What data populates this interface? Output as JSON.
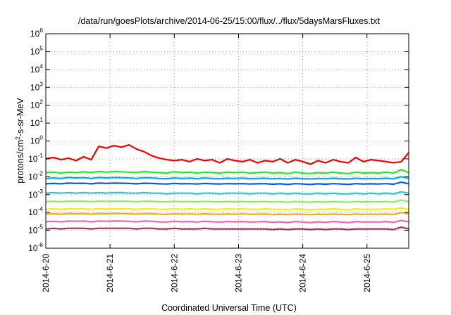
{
  "chart_data": {
    "type": "line",
    "title": "/data/run/goesPlots/archive/2014-06-25/15:00/flux/../flux/5daysMarsFluxes.txt",
    "xlabel": "Coordinated Universal Time (UTC)",
    "ylabel_prefix": "protons/cm",
    "ylabel_sup": "2",
    "ylabel_suffix": "-s-sr-MeV",
    "y_scale": "log",
    "ylim_exponents": [
      -6,
      6
    ],
    "y_ticks": [
      {
        "base": "10",
        "exp": "6"
      },
      {
        "base": "10",
        "exp": "5"
      },
      {
        "base": "10",
        "exp": "4"
      },
      {
        "base": "10",
        "exp": "3"
      },
      {
        "base": "10",
        "exp": "2"
      },
      {
        "base": "10",
        "exp": "1"
      },
      {
        "base": "10",
        "exp": "0"
      },
      {
        "base": "10",
        "exp": "-1"
      },
      {
        "base": "10",
        "exp": "-2"
      },
      {
        "base": "10",
        "exp": "-3"
      },
      {
        "base": "10",
        "exp": "-4"
      },
      {
        "base": "10",
        "exp": "-5"
      },
      {
        "base": "10",
        "exp": "-6"
      }
    ],
    "x_ticks": [
      "2014-6-20",
      "2014-6-21",
      "2014-6-22",
      "2014-6-23",
      "2014-6-24",
      "2014-6-25"
    ],
    "xlim_days": [
      0,
      5.65
    ],
    "grid": true,
    "series": [
      {
        "color": "#ee0000",
        "values": [
          0.1,
          0.12,
          0.09,
          0.11,
          0.08,
          0.13,
          0.09,
          0.5,
          0.4,
          0.55,
          0.45,
          0.6,
          0.35,
          0.25,
          0.15,
          0.11,
          0.09,
          0.08,
          0.09,
          0.07,
          0.1,
          0.08,
          0.09,
          0.06,
          0.1,
          0.08,
          0.07,
          0.09,
          0.06,
          0.08,
          0.07,
          0.1,
          0.06,
          0.09,
          0.07,
          0.05,
          0.08,
          0.06,
          0.09,
          0.07,
          0.06,
          0.12,
          0.07,
          0.09,
          0.08,
          0.07,
          0.06,
          0.07,
          0.22
        ]
      },
      {
        "color": "#22ee22",
        "values": [
          0.017,
          0.018,
          0.016,
          0.018,
          0.017,
          0.019,
          0.017,
          0.02,
          0.018,
          0.02,
          0.019,
          0.018,
          0.017,
          0.02,
          0.018,
          0.017,
          0.016,
          0.019,
          0.017,
          0.018,
          0.016,
          0.018,
          0.017,
          0.016,
          0.018,
          0.017,
          0.018,
          0.016,
          0.017,
          0.018,
          0.016,
          0.017,
          0.015,
          0.018,
          0.016,
          0.015,
          0.017,
          0.016,
          0.018,
          0.016,
          0.015,
          0.018,
          0.016,
          0.017,
          0.016,
          0.018,
          0.016,
          0.025,
          0.017
        ]
      },
      {
        "color": "#00aaee",
        "values": [
          0.008,
          0.0085,
          0.008,
          0.009,
          0.0085,
          0.0088,
          0.008,
          0.009,
          0.0085,
          0.009,
          0.0088,
          0.0085,
          0.008,
          0.0088,
          0.0085,
          0.008,
          0.0078,
          0.0085,
          0.008,
          0.0083,
          0.0078,
          0.0085,
          0.008,
          0.0078,
          0.0082,
          0.008,
          0.0083,
          0.0078,
          0.008,
          0.0082,
          0.0077,
          0.008,
          0.0075,
          0.0082,
          0.0078,
          0.0075,
          0.008,
          0.0077,
          0.0082,
          0.0078,
          0.0075,
          0.0082,
          0.0078,
          0.008,
          0.0078,
          0.0082,
          0.0077,
          0.01,
          0.008
        ]
      },
      {
        "color": "#1155ee",
        "values": [
          0.004,
          0.0042,
          0.004,
          0.0044,
          0.0042,
          0.0043,
          0.004,
          0.0044,
          0.0042,
          0.0044,
          0.0043,
          0.0042,
          0.004,
          0.0043,
          0.0042,
          0.004,
          0.0039,
          0.0042,
          0.004,
          0.0041,
          0.0039,
          0.0042,
          0.004,
          0.0039,
          0.0041,
          0.004,
          0.0041,
          0.0039,
          0.004,
          0.0041,
          0.0038,
          0.004,
          0.0037,
          0.0041,
          0.0039,
          0.0037,
          0.004,
          0.0038,
          0.0041,
          0.0039,
          0.0037,
          0.0041,
          0.0039,
          0.004,
          0.0039,
          0.0041,
          0.0038,
          0.005,
          0.004
        ]
      },
      {
        "color": "#22cccc",
        "values": [
          0.0012,
          0.0013,
          0.0012,
          0.0013,
          0.0012,
          0.0013,
          0.0012,
          0.0013,
          0.0012,
          0.0013,
          0.0013,
          0.0012,
          0.0012,
          0.0013,
          0.0012,
          0.0012,
          0.0011,
          0.0012,
          0.0012,
          0.0012,
          0.0011,
          0.0012,
          0.0012,
          0.0011,
          0.0012,
          0.0012,
          0.0012,
          0.0011,
          0.0012,
          0.0012,
          0.0011,
          0.0012,
          0.0011,
          0.0012,
          0.0011,
          0.0011,
          0.0012,
          0.0011,
          0.0012,
          0.0011,
          0.0011,
          0.0012,
          0.0011,
          0.0012,
          0.0011,
          0.0012,
          0.0011,
          0.0014,
          0.0012
        ]
      },
      {
        "color": "#88ee66",
        "values": [
          0.0004,
          0.00042,
          0.0004,
          0.00043,
          0.00042,
          0.00043,
          0.0004,
          0.00043,
          0.00042,
          0.00043,
          0.00043,
          0.00042,
          0.0004,
          0.00043,
          0.00042,
          0.0004,
          0.00039,
          0.00042,
          0.0004,
          0.00041,
          0.00039,
          0.00042,
          0.0004,
          0.00039,
          0.00041,
          0.0004,
          0.00041,
          0.00039,
          0.0004,
          0.00041,
          0.00038,
          0.0004,
          0.00037,
          0.00041,
          0.00039,
          0.00037,
          0.0004,
          0.00038,
          0.00041,
          0.00039,
          0.00037,
          0.00041,
          0.00039,
          0.0004,
          0.00039,
          0.00041,
          0.00038,
          0.0005,
          0.0004
        ]
      },
      {
        "color": "#eeee22",
        "values": [
          0.00015,
          0.00016,
          0.00015,
          0.00016,
          0.00016,
          0.00016,
          0.00015,
          0.00016,
          0.00016,
          0.00016,
          0.00016,
          0.00016,
          0.00015,
          0.00016,
          0.00016,
          0.00015,
          0.00015,
          0.00016,
          0.00015,
          0.00016,
          0.00015,
          0.00016,
          0.00015,
          0.00015,
          0.00016,
          0.00015,
          0.00016,
          0.00015,
          0.00015,
          0.00016,
          0.00015,
          0.00015,
          0.00014,
          0.00016,
          0.00015,
          0.00014,
          0.00015,
          0.00015,
          0.00016,
          0.00015,
          0.00014,
          0.00016,
          0.00015,
          0.00015,
          0.00015,
          0.00016,
          0.00015,
          0.00018,
          0.00015
        ]
      },
      {
        "color": "#eeaa22",
        "values": [
          8e-05,
          8.5e-05,
          8e-05,
          8.8e-05,
          8.5e-05,
          8.7e-05,
          8e-05,
          8.8e-05,
          8.5e-05,
          8.8e-05,
          8.7e-05,
          8.5e-05,
          8e-05,
          8.7e-05,
          8.5e-05,
          8e-05,
          7.8e-05,
          8.5e-05,
          8e-05,
          8.3e-05,
          7.8e-05,
          8.5e-05,
          8e-05,
          7.8e-05,
          8.2e-05,
          8e-05,
          8.3e-05,
          7.8e-05,
          8e-05,
          8.2e-05,
          7.7e-05,
          8e-05,
          7.5e-05,
          8.2e-05,
          7.8e-05,
          7.5e-05,
          8e-05,
          7.7e-05,
          8.2e-05,
          7.8e-05,
          7.5e-05,
          8.2e-05,
          7.8e-05,
          8e-05,
          7.8e-05,
          8.2e-05,
          7.7e-05,
          0.0001,
          8e-05
        ]
      },
      {
        "color": "#ee66aa",
        "values": [
          3e-05,
          3.2e-05,
          3e-05,
          3.3e-05,
          3.2e-05,
          3.3e-05,
          3e-05,
          3.3e-05,
          3.2e-05,
          3.3e-05,
          3.3e-05,
          3.2e-05,
          3e-05,
          3.3e-05,
          3.2e-05,
          3e-05,
          2.9e-05,
          3.2e-05,
          3e-05,
          3.1e-05,
          2.9e-05,
          3.2e-05,
          3e-05,
          2.9e-05,
          3.1e-05,
          3e-05,
          3.1e-05,
          2.9e-05,
          3e-05,
          3.1e-05,
          2.8e-05,
          3e-05,
          2.7e-05,
          3.1e-05,
          2.9e-05,
          2.7e-05,
          3e-05,
          2.8e-05,
          3.1e-05,
          2.9e-05,
          2.7e-05,
          3.1e-05,
          2.9e-05,
          3e-05,
          2.9e-05,
          3.1e-05,
          2.8e-05,
          3.6e-05,
          3e-05
        ]
      },
      {
        "color": "#993366",
        "values": [
          1.2e-05,
          1.3e-05,
          1.2e-05,
          1.3e-05,
          1.3e-05,
          1.3e-05,
          1.2e-05,
          1.3e-05,
          1.3e-05,
          1.3e-05,
          1.3e-05,
          1.3e-05,
          1.2e-05,
          1.3e-05,
          1.3e-05,
          1.2e-05,
          1.2e-05,
          1.3e-05,
          1.2e-05,
          1.2e-05,
          1.2e-05,
          1.3e-05,
          1.2e-05,
          1.2e-05,
          1.2e-05,
          1.2e-05,
          1.2e-05,
          1.2e-05,
          1.2e-05,
          1.2e-05,
          1.1e-05,
          1.2e-05,
          1.1e-05,
          1.2e-05,
          1.2e-05,
          1.1e-05,
          1.2e-05,
          1.1e-05,
          1.2e-05,
          1.2e-05,
          1.1e-05,
          1.2e-05,
          1.2e-05,
          1.2e-05,
          1.2e-05,
          1.2e-05,
          1.1e-05,
          1.5e-05,
          1.2e-05
        ]
      }
    ]
  }
}
